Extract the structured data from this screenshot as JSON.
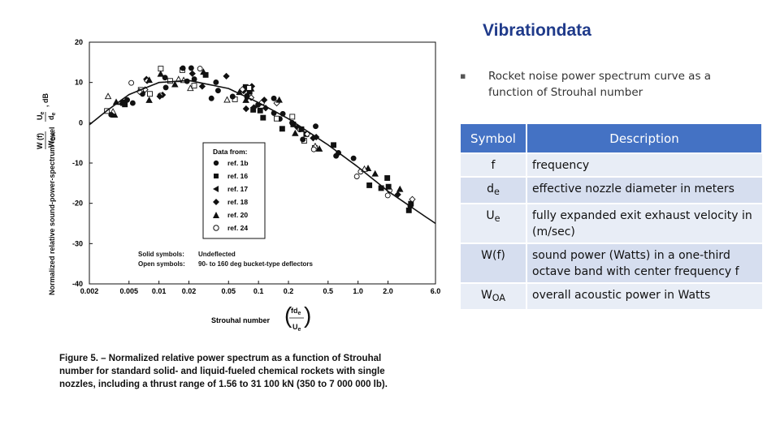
{
  "slide": {
    "title": "Vibrationdata",
    "bullet": "Rocket noise power spectrum curve as a function of Strouhal number"
  },
  "table": {
    "headers": [
      "Symbol",
      "Description"
    ],
    "rows": [
      {
        "symbol": "f",
        "sub": "",
        "desc": "frequency"
      },
      {
        "symbol": "d",
        "sub": "e",
        "desc": "effective nozzle diameter in meters"
      },
      {
        "symbol": "U",
        "sub": "e",
        "desc": "fully expanded exit exhaust velocity in (m/sec)"
      },
      {
        "symbol": "W(f)",
        "sub": "",
        "desc": "sound power (Watts) in a one-third octave band with center frequency f"
      },
      {
        "symbol": "W",
        "sub": "OA",
        "desc": "overall acoustic power in Watts"
      }
    ]
  },
  "figure": {
    "y_ticks": [
      "20",
      "10",
      "0",
      "-10",
      "-20",
      "-30",
      "-40"
    ],
    "x_ticks": [
      "0.002",
      "0.005",
      "0.01",
      "0.02",
      "0.05",
      "0.1",
      "0.2",
      "0.5",
      "1.0",
      "2.0",
      "6.0"
    ],
    "y_axis_label": "Normalized relative sound-power-spectrum level",
    "y_formula_num": "W (f)",
    "y_formula_den": "W",
    "y_formula_den_sub": "OA",
    "y_formula_u": "U",
    "y_formula_u_sub": "e",
    "y_formula_d": "d",
    "y_formula_d_sub": "e",
    "y_formula_unit": ", dB",
    "x_axis_label": "Strouhal number",
    "x_formula_num": "fd",
    "x_formula_num_sub": "e",
    "x_formula_den": "U",
    "x_formula_den_sub": "e",
    "legend_title": "Data from:",
    "legend_entries": [
      "ref. 1b",
      "ref. 16",
      "ref. 17",
      "ref. 18",
      "ref. 20",
      "ref. 24"
    ],
    "solid_label": "Solid symbols:",
    "solid_value": "Undeflected",
    "open_label": "Open symbols:",
    "open_value": "90- to 160 deg bucket-type deflectors",
    "caption": "Figure 5. – Normalized relative power spectrum as a function of Strouhal number for standard solid- and liquid-fueled chemical rockets with single nozzles, including a thrust range of 1.56 to 31 100 kN (350 to 7 000 000 lb).",
    "curve_points": [
      [
        0.002,
        -0.5
      ],
      [
        0.003,
        3
      ],
      [
        0.005,
        7
      ],
      [
        0.01,
        10
      ],
      [
        0.02,
        10.5
      ],
      [
        0.05,
        8.5
      ],
      [
        0.1,
        5
      ],
      [
        0.2,
        1
      ],
      [
        0.5,
        -5.5
      ],
      [
        1.0,
        -11
      ],
      [
        2.0,
        -17
      ],
      [
        6.0,
        -25
      ]
    ]
  }
}
